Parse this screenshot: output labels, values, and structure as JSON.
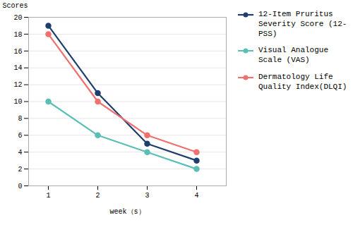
{
  "chart_data": {
    "type": "line",
    "x": [
      1,
      2,
      3,
      4
    ],
    "xlabel": "week（s）",
    "ylabel": "Scores",
    "xlim": [
      0.6,
      4.6
    ],
    "xticks": [
      1,
      2,
      3,
      4
    ],
    "ylim": [
      0,
      20
    ],
    "yticks": [
      0,
      2,
      4,
      6,
      8,
      10,
      12,
      14,
      16,
      18,
      20
    ],
    "grid": true,
    "legend": "right",
    "series": [
      {
        "name": "12-Item Pruritus\nSeverity Score (12-\nPSS)",
        "color": "#1e3f6e",
        "marker": "circle",
        "values": [
          19,
          11,
          5,
          3
        ]
      },
      {
        "name": "Visual Analogue\nScale (VAS)",
        "color": "#5bbfb5",
        "marker": "circle",
        "values": [
          10,
          6,
          4,
          2
        ]
      },
      {
        "name": "Dermatology Life\nQuality Index(DLQI)",
        "color": "#f07070",
        "marker": "circle",
        "values": [
          18,
          10,
          6,
          4
        ]
      }
    ]
  }
}
